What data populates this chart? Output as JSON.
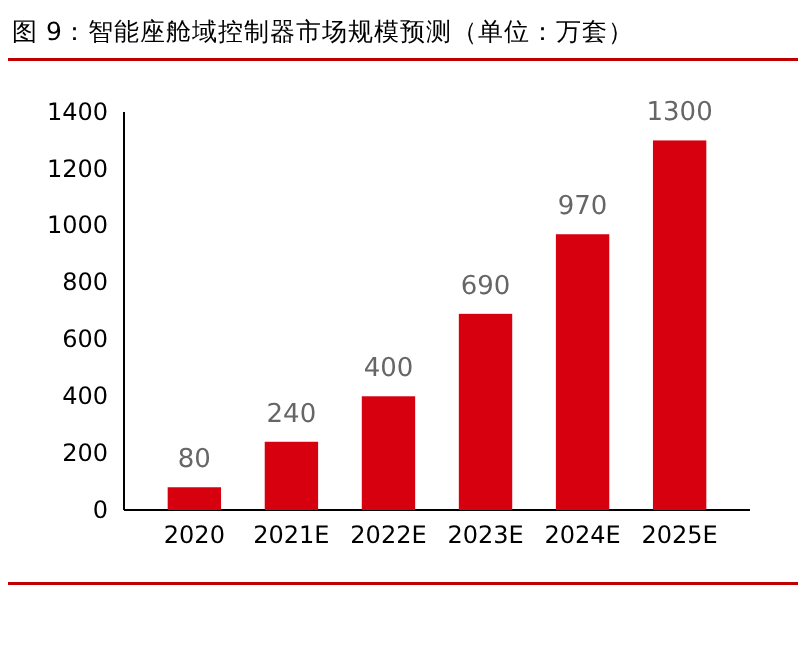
{
  "chart_data": {
    "type": "bar",
    "title": "图 9：智能座舱域控制器市场规模预测（单位：万套）",
    "categories": [
      "2020",
      "2021E",
      "2022E",
      "2023E",
      "2024E",
      "2025E"
    ],
    "values": [
      80,
      240,
      400,
      690,
      970,
      1300
    ],
    "color": "#d7000f",
    "ylim": [
      0,
      1400
    ],
    "yticks": [
      0,
      200,
      400,
      600,
      800,
      1000,
      1200,
      1400
    ],
    "grid": false,
    "data_labels": true
  }
}
